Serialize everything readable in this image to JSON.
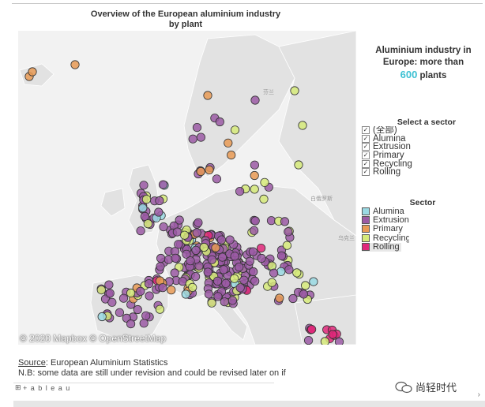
{
  "title_line1": "Overview of the European aluminium industry",
  "title_line2": "by plant",
  "headline": {
    "line1": "Aluminium industry in",
    "line2": "Europe: more than",
    "count": "600",
    "suffix": " plants"
  },
  "filter": {
    "title": "Select a sector",
    "items": [
      {
        "label": "(全部)",
        "checked": true
      },
      {
        "label": "Alumina",
        "checked": true
      },
      {
        "label": "Extrusion",
        "checked": true
      },
      {
        "label": "Primary",
        "checked": true
      },
      {
        "label": "Recycling",
        "checked": true
      },
      {
        "label": "Rolling",
        "checked": true
      }
    ]
  },
  "legend": {
    "title": "Sector",
    "items": [
      {
        "label": "Alumina",
        "color": "#9ad9e3"
      },
      {
        "label": "Extrusion",
        "color": "#9b5aa4"
      },
      {
        "label": "Primary",
        "color": "#e89a55"
      },
      {
        "label": "Recycling",
        "color": "#d6ea7a"
      },
      {
        "label": "Rolling",
        "color": "#e0287a"
      }
    ]
  },
  "map": {
    "attribution": "© 2020 Mapbox © OpenStreetMap",
    "labels": [
      "芬兰",
      "白俄罗斯",
      "乌克兰"
    ]
  },
  "source": {
    "label": "Source",
    "text": ": European Aluminium Statistics"
  },
  "note": "N.B: some data are still under revision and could be revised later on if",
  "tableau_logo": "+ a b l e a u",
  "watermark": "尚轻时代",
  "colors": {
    "sea": "#f2f2f2",
    "land": "#e2e2e2",
    "highlight": "#3ec1d3"
  }
}
